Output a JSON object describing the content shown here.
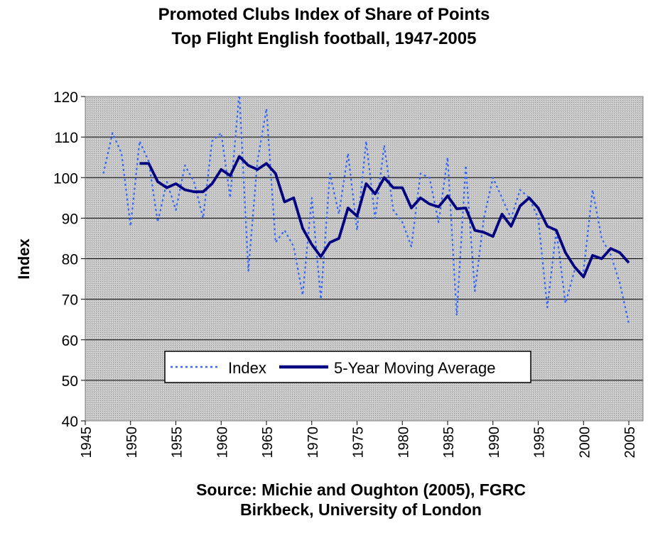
{
  "chart_data": {
    "type": "line",
    "title": [
      "Promoted Clubs Index of Share of Points",
      "Top Flight English football, 1947-2005"
    ],
    "xlabel": "",
    "ylabel": "Index",
    "xlim": [
      1945,
      2005
    ],
    "ylim": [
      40,
      120
    ],
    "x_ticks": [
      "1945",
      "1950",
      "1955",
      "1960",
      "1965",
      "1970",
      "1975",
      "1980",
      "1985",
      "1990",
      "1995",
      "2000",
      "2005"
    ],
    "y_ticks": [
      "40",
      "50",
      "60",
      "70",
      "80",
      "90",
      "100",
      "110",
      "120"
    ],
    "grid": true,
    "legend_position": "bottom-center",
    "source": [
      "Source: Michie and Oughton (2005), FGRC",
      "Birkbeck, University of London"
    ],
    "series": [
      {
        "name": "Index",
        "style": "dotted",
        "color": "#3366ff",
        "points": [
          [
            1947,
            101
          ],
          [
            1948,
            111
          ],
          [
            1949,
            106
          ],
          [
            1950,
            88
          ],
          [
            1951,
            109
          ],
          [
            1952,
            104
          ],
          [
            1953,
            89
          ],
          [
            1954,
            99
          ],
          [
            1955,
            92
          ],
          [
            1956,
            103
          ],
          [
            1957,
            99
          ],
          [
            1958,
            90
          ],
          [
            1959,
            109
          ],
          [
            1960,
            111
          ],
          [
            1961,
            95
          ],
          [
            1962,
            121
          ],
          [
            1963,
            77
          ],
          [
            1964,
            104
          ],
          [
            1965,
            117
          ],
          [
            1966,
            84
          ],
          [
            1967,
            87
          ],
          [
            1968,
            83
          ],
          [
            1969,
            71
          ],
          [
            1970,
            95
          ],
          [
            1971,
            70
          ],
          [
            1972,
            101
          ],
          [
            1973,
            91
          ],
          [
            1974,
            106
          ],
          [
            1975,
            87
          ],
          [
            1976,
            109
          ],
          [
            1977,
            90
          ],
          [
            1978,
            108
          ],
          [
            1979,
            92
          ],
          [
            1980,
            89
          ],
          [
            1981,
            83
          ],
          [
            1982,
            101
          ],
          [
            1983,
            100
          ],
          [
            1984,
            89
          ],
          [
            1985,
            105
          ],
          [
            1986,
            66
          ],
          [
            1987,
            103
          ],
          [
            1988,
            72
          ],
          [
            1989,
            90
          ],
          [
            1990,
            100
          ],
          [
            1991,
            95
          ],
          [
            1992,
            90
          ],
          [
            1993,
            97
          ],
          [
            1994,
            95
          ],
          [
            1995,
            90
          ],
          [
            1996,
            68
          ],
          [
            1997,
            87
          ],
          [
            1998,
            69
          ],
          [
            1999,
            77
          ],
          [
            2000,
            77
          ],
          [
            2001,
            97
          ],
          [
            2002,
            85
          ],
          [
            2003,
            81
          ],
          [
            2004,
            74
          ],
          [
            2005,
            64
          ]
        ]
      },
      {
        "name": "5-Year Moving Average",
        "style": "solid",
        "color": "#000080",
        "points": [
          [
            1951,
            103.5
          ],
          [
            1952,
            103.5
          ],
          [
            1953,
            99
          ],
          [
            1954,
            97.5
          ],
          [
            1955,
            98.5
          ],
          [
            1956,
            97
          ],
          [
            1957,
            96.5
          ],
          [
            1958,
            96.5
          ],
          [
            1959,
            98.5
          ],
          [
            1960,
            102
          ],
          [
            1961,
            100.5
          ],
          [
            1962,
            105.2
          ],
          [
            1963,
            103
          ],
          [
            1964,
            102
          ],
          [
            1965,
            103.5
          ],
          [
            1966,
            101
          ],
          [
            1967,
            94
          ],
          [
            1968,
            95
          ],
          [
            1969,
            87.5
          ],
          [
            1970,
            83.5
          ],
          [
            1971,
            80.5
          ],
          [
            1972,
            84
          ],
          [
            1973,
            85
          ],
          [
            1974,
            92.5
          ],
          [
            1975,
            90.5
          ],
          [
            1976,
            98.5
          ],
          [
            1977,
            96
          ],
          [
            1978,
            100
          ],
          [
            1979,
            97.5
          ],
          [
            1980,
            97.5
          ],
          [
            1981,
            92.5
          ],
          [
            1982,
            95
          ],
          [
            1983,
            93.5
          ],
          [
            1984,
            92.8
          ],
          [
            1985,
            95.5
          ],
          [
            1986,
            92.3
          ],
          [
            1987,
            92.5
          ],
          [
            1988,
            87
          ],
          [
            1989,
            86.5
          ],
          [
            1990,
            85.5
          ],
          [
            1991,
            91
          ],
          [
            1992,
            88
          ],
          [
            1993,
            93
          ],
          [
            1994,
            95
          ],
          [
            1995,
            92.5
          ],
          [
            1996,
            88
          ],
          [
            1997,
            87
          ],
          [
            1998,
            81.5
          ],
          [
            1999,
            78
          ],
          [
            2000,
            75.5
          ],
          [
            2001,
            80.8
          ],
          [
            2002,
            80
          ],
          [
            2003,
            82.5
          ],
          [
            2004,
            81.5
          ],
          [
            2005,
            79
          ]
        ]
      }
    ]
  }
}
